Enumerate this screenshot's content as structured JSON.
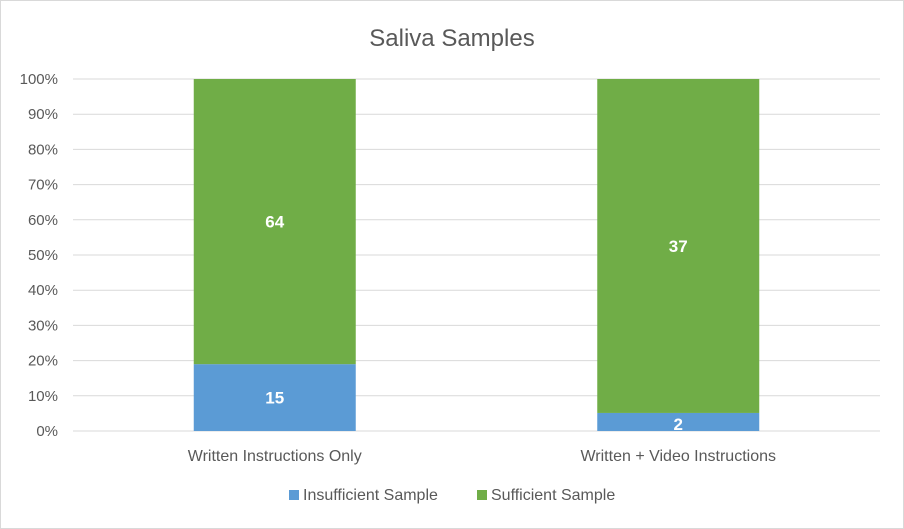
{
  "chart_data": {
    "type": "bar",
    "stacked": true,
    "normalized": true,
    "title": "Saliva Samples",
    "categories": [
      "Written Instructions Only",
      "Written + Video Instructions"
    ],
    "series": [
      {
        "name": "Insufficient Sample",
        "values": [
          15,
          2
        ],
        "color": "#5B9BD5"
      },
      {
        "name": "Sufficient Sample",
        "values": [
          64,
          37
        ],
        "color": "#70AD47"
      }
    ],
    "y_ticks": [
      "0%",
      "10%",
      "20%",
      "30%",
      "40%",
      "50%",
      "60%",
      "70%",
      "80%",
      "90%",
      "100%"
    ],
    "ylim": [
      0,
      100
    ],
    "grid": true,
    "legend": "bottom"
  }
}
